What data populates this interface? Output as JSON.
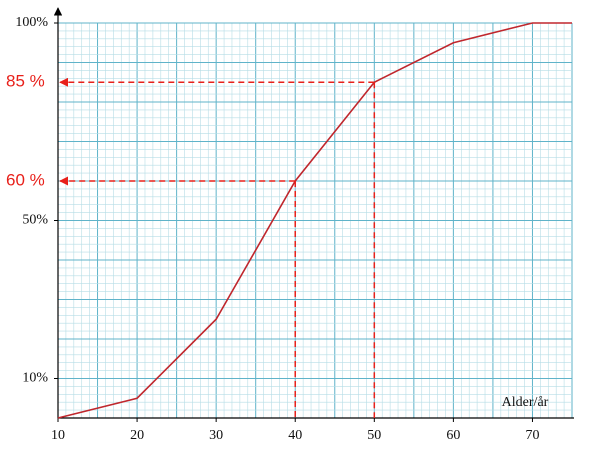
{
  "chart_data": {
    "type": "line",
    "x": [
      10,
      20,
      30,
      40,
      50,
      60,
      70,
      75
    ],
    "values": [
      0,
      5,
      25,
      60,
      85,
      95,
      100,
      100
    ],
    "color": "#c0272d",
    "xlim": [
      10,
      75
    ],
    "ylim": [
      0,
      100
    ],
    "xticks": [
      10,
      20,
      30,
      40,
      50,
      60,
      70
    ],
    "yticks": [
      {
        "value": 10,
        "label": "10%"
      },
      {
        "value": 50,
        "label": "50%"
      },
      {
        "value": 100,
        "label": "100%"
      }
    ],
    "x_label": "Alder/år",
    "grid": true,
    "annotations": [
      {
        "text": "85 %",
        "x": 50,
        "y": 85,
        "color": "#e8201a"
      },
      {
        "text": "60 %",
        "x": 40,
        "y": 60,
        "color": "#e8201a"
      }
    ]
  }
}
